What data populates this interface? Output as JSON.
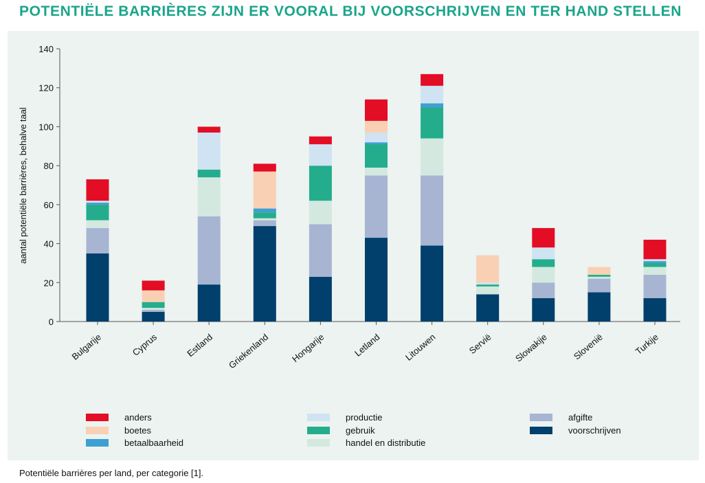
{
  "title": "POTENTIËLE BARRIÈRES ZIJN ER VOORAL BIJ VOORSCHRIJVEN EN TER HAND STELLEN",
  "caption": "Potentiële barrières per land, per categorie [1].",
  "colors": {
    "title": "#1aa58a",
    "panel": "#ecf3f0"
  },
  "chart_data": {
    "type": "bar",
    "stacked": true,
    "title": "",
    "xlabel": "",
    "ylabel": "aantal potentiële barrières, behalve taal",
    "ylim": [
      0,
      140
    ],
    "yticks": [
      0,
      20,
      40,
      60,
      80,
      100,
      120,
      140
    ],
    "grid": false,
    "legend_position": "bottom",
    "categories": [
      "Bulgarije",
      "Cyprus",
      "Estland",
      "Griekenland",
      "Hongarije",
      "Letland",
      "Litouwen",
      "Servië",
      "Slowakije",
      "Slovenië",
      "Turkije"
    ],
    "series": [
      {
        "name": "voorschrijven",
        "color": "#013f6c",
        "values": [
          35,
          5,
          19,
          49,
          23,
          43,
          39,
          14,
          12,
          15,
          12
        ]
      },
      {
        "name": "afgifte",
        "color": "#a7b5d3",
        "values": [
          13,
          1,
          35,
          3,
          27,
          32,
          36,
          0,
          8,
          7,
          12
        ]
      },
      {
        "name": "handel en distributie",
        "color": "#d3e9e0",
        "values": [
          4,
          1,
          20,
          1,
          12,
          4,
          19,
          4,
          8,
          1,
          4
        ]
      },
      {
        "name": "gebruik",
        "color": "#24ad8c",
        "values": [
          8,
          3,
          4,
          3,
          18,
          12,
          16,
          1,
          4,
          1,
          2
        ]
      },
      {
        "name": "betaalbaarheid",
        "color": "#3d9fd2",
        "values": [
          1,
          0,
          0,
          2,
          0,
          1,
          2,
          0,
          0,
          0,
          1
        ]
      },
      {
        "name": "productie",
        "color": "#cfe3f3",
        "values": [
          1,
          0,
          19,
          0,
          11,
          5,
          9,
          1,
          6,
          0,
          1
        ]
      },
      {
        "name": "boetes",
        "color": "#f9d0b4",
        "values": [
          0,
          6,
          0,
          19,
          0,
          6,
          0,
          14,
          0,
          4,
          0
        ]
      },
      {
        "name": "anders",
        "color": "#e30d25",
        "values": [
          11,
          5,
          3,
          4,
          4,
          11,
          6,
          0,
          10,
          0,
          10
        ]
      }
    ],
    "legend": [
      {
        "name": "anders",
        "color": "#e30d25"
      },
      {
        "name": "boetes",
        "color": "#f9d0b4"
      },
      {
        "name": "betaalbaarheid",
        "color": "#3d9fd2"
      },
      {
        "name": "productie",
        "color": "#cfe3f3"
      },
      {
        "name": "gebruik",
        "color": "#24ad8c"
      },
      {
        "name": "handel en distributie",
        "color": "#d3e9e0"
      },
      {
        "name": "afgifte",
        "color": "#a7b5d3"
      },
      {
        "name": "voorschrijven",
        "color": "#013f6c"
      }
    ]
  }
}
